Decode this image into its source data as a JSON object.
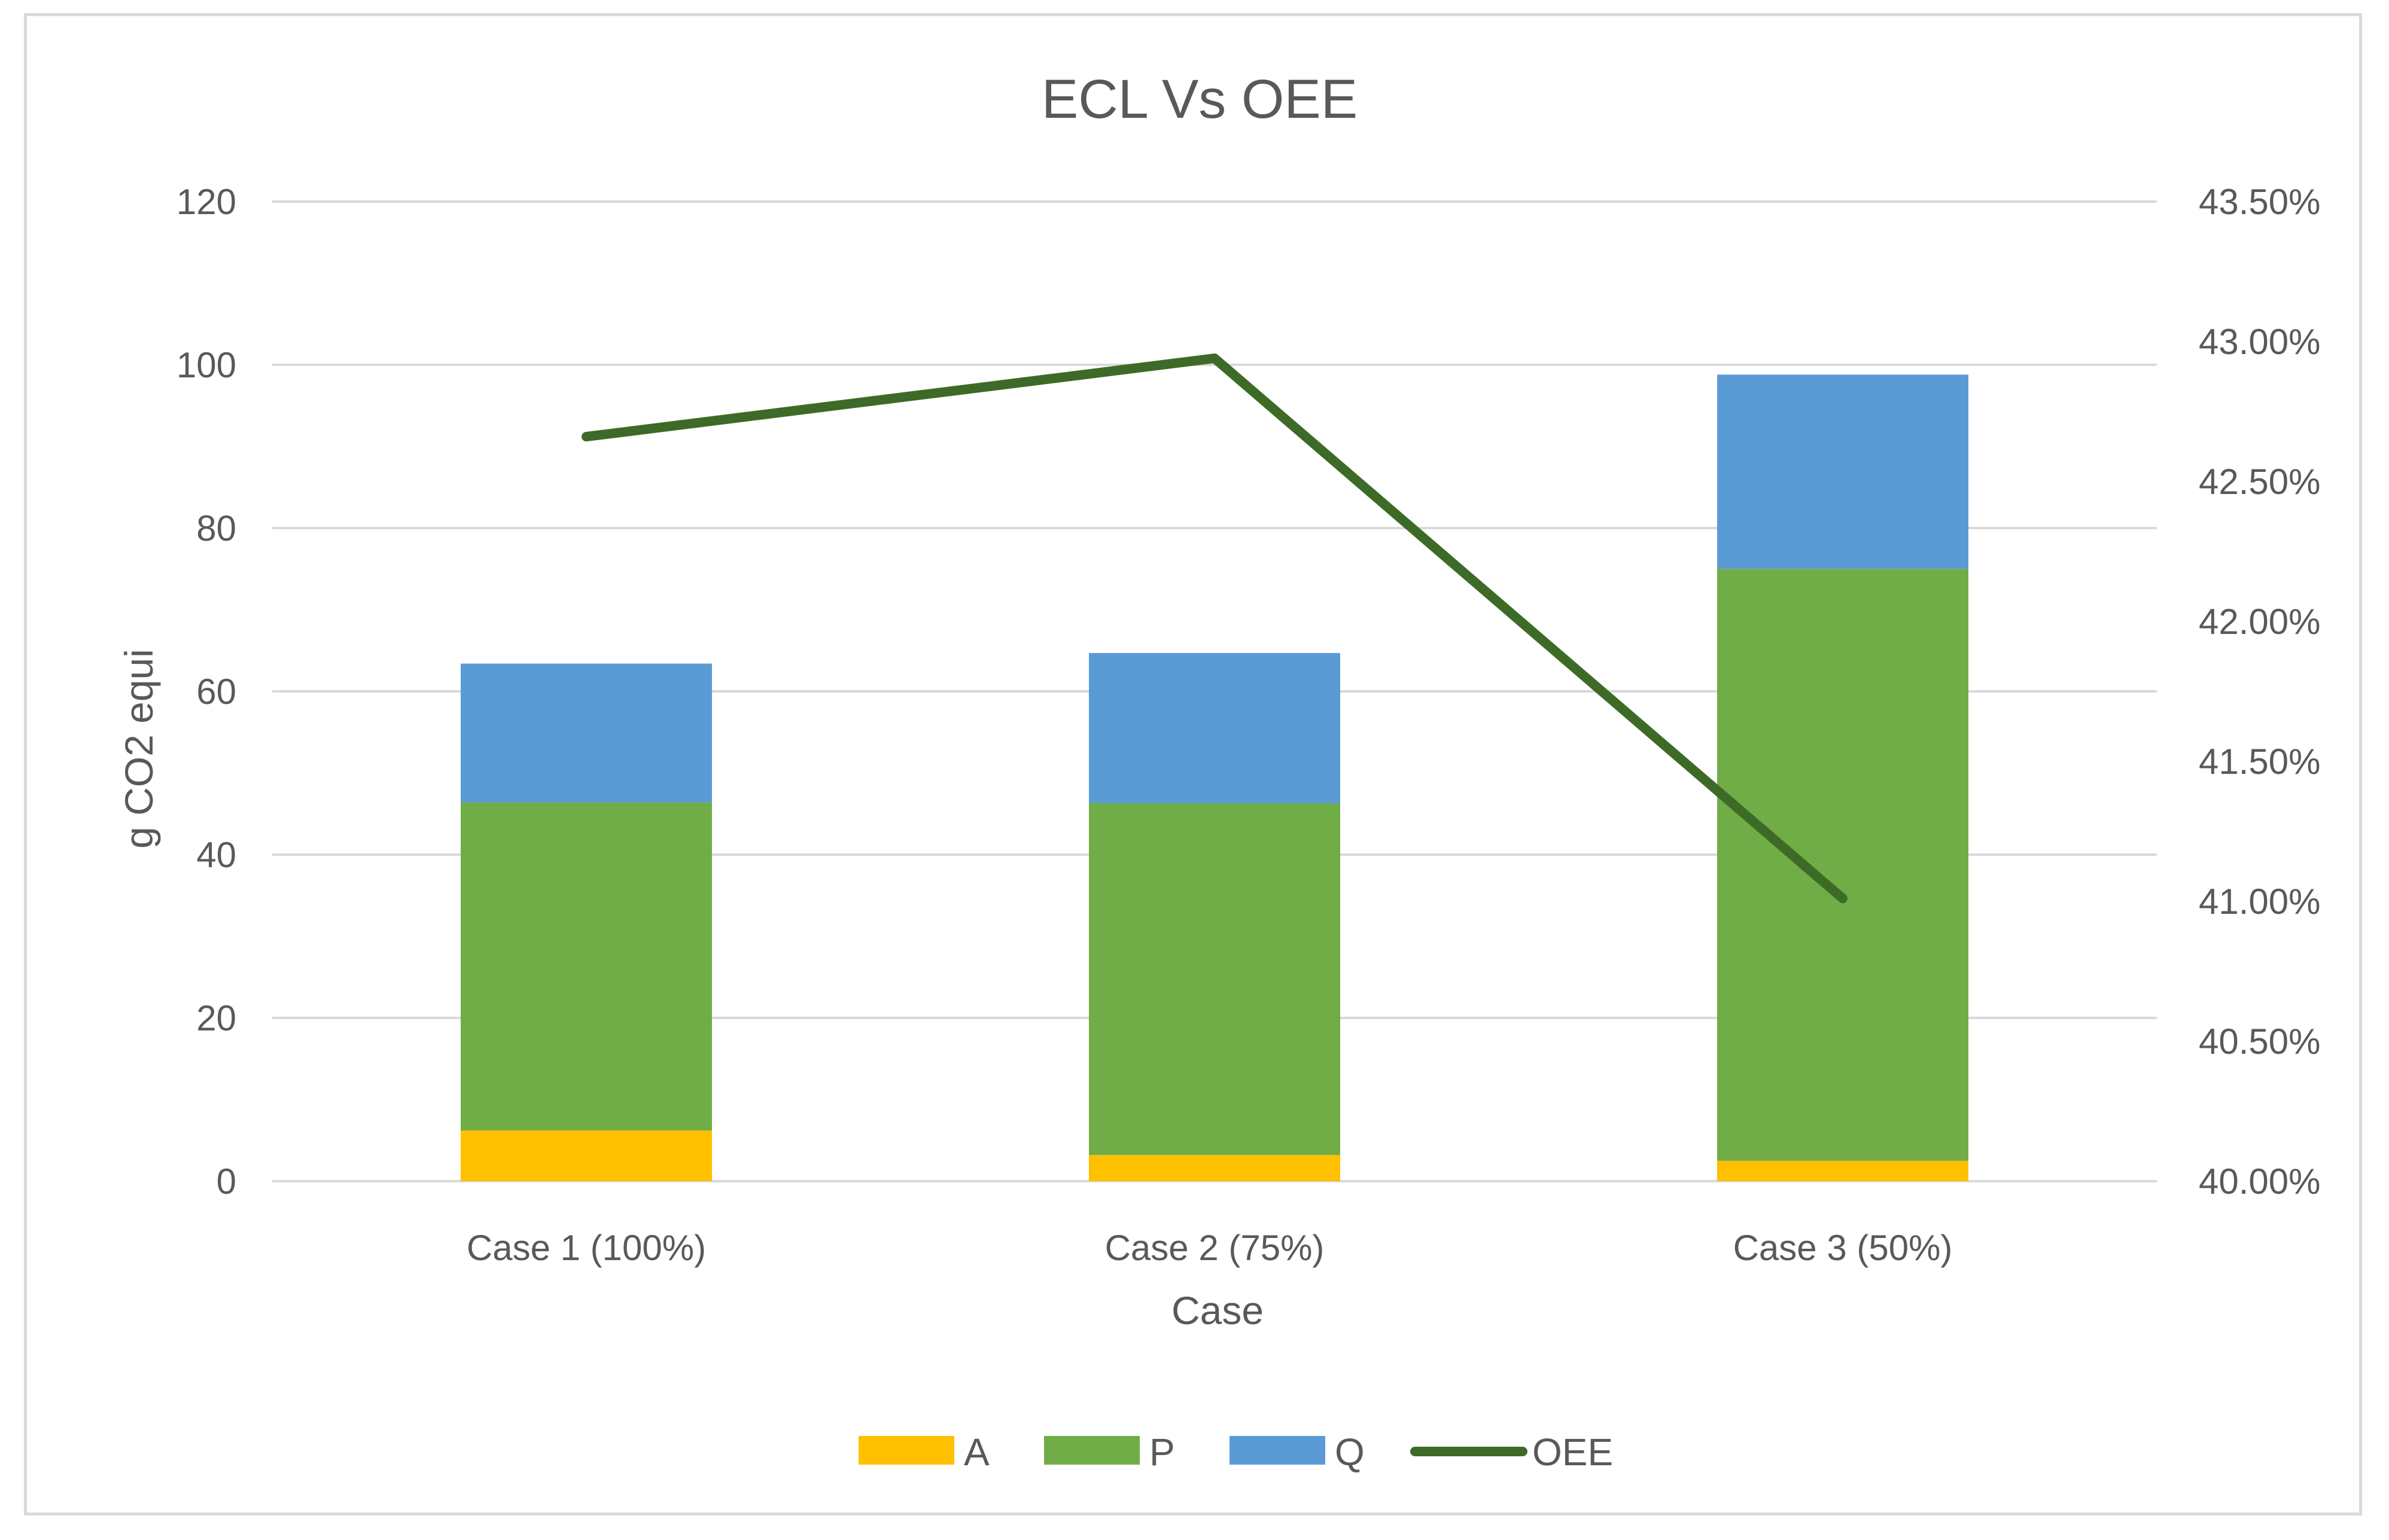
{
  "chart_data": {
    "type": "bar",
    "stacked": true,
    "title": "ECL Vs OEE",
    "xlabel": "Case",
    "ylabel": "g CO2 equi",
    "categories": [
      "Case 1 (100%)",
      "Case 2 (75%)",
      "Case 3 (50%)"
    ],
    "ylim": [
      0,
      120
    ],
    "y_ticks": [
      0,
      20,
      40,
      60,
      80,
      100,
      120
    ],
    "y2lim": [
      40.0,
      43.5
    ],
    "y2_ticks": [
      "40.00%",
      "40.50%",
      "41.00%",
      "41.50%",
      "42.00%",
      "42.50%",
      "43.00%",
      "43.50%"
    ],
    "series": [
      {
        "name": "A",
        "type": "bar",
        "color": "#FFC000",
        "values": [
          6.2,
          3.2,
          2.5
        ]
      },
      {
        "name": "P",
        "type": "bar",
        "color": "#70AD47",
        "values": [
          40.2,
          43.1,
          72.5
        ]
      },
      {
        "name": "Q",
        "type": "bar",
        "color": "#5B9BD5",
        "values": [
          17.0,
          18.4,
          23.8
        ]
      },
      {
        "name": "OEE",
        "type": "line",
        "axis": "secondary",
        "color": "#3D6B27",
        "values": [
          42.66,
          42.94,
          41.01
        ]
      }
    ],
    "legend": "bottom",
    "grid": true
  }
}
